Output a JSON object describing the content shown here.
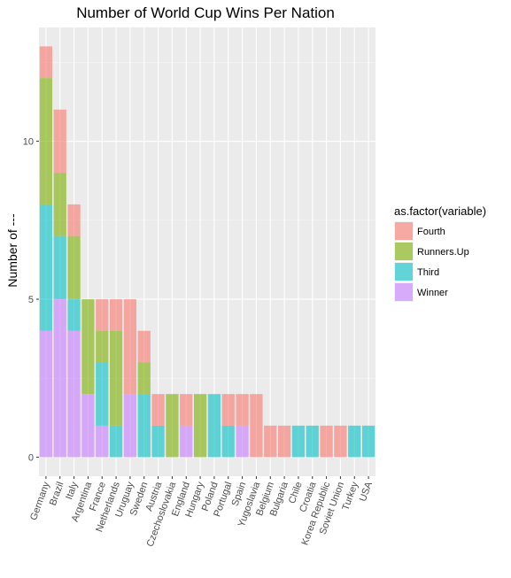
{
  "chart_data": {
    "type": "bar",
    "stacked": true,
    "title": "Number of World Cup Wins Per Nation",
    "xlabel": "",
    "ylabel": "Number of ---",
    "ylim": [
      -0.6,
      13.6
    ],
    "yticks": [
      0,
      5,
      10
    ],
    "grid": true,
    "legend_position": "right",
    "legend_title": "as.factor(variable)",
    "categories": [
      "Germany",
      "Brazil",
      "Italy",
      "Argentina",
      "France",
      "Netherlands",
      "Uruguay",
      "Sweden",
      "Austria",
      "Czechoslovakia",
      "England",
      "Hungary",
      "Poland",
      "Portugal",
      "Spain",
      "Yugoslavia",
      "Belgium",
      "Bulgaria",
      "Chile",
      "Croatia",
      "Korea Republic",
      "Soviet Union",
      "Turkey",
      "USA"
    ],
    "series": [
      {
        "name": "Winner",
        "color": "#C77CFF",
        "values": [
          4,
          5,
          4,
          2,
          1,
          0,
          2,
          0,
          0,
          0,
          1,
          0,
          0,
          0,
          1,
          0,
          0,
          0,
          0,
          0,
          0,
          0,
          0,
          0
        ]
      },
      {
        "name": "Third",
        "color": "#00BFC4",
        "values": [
          4,
          2,
          1,
          0,
          2,
          1,
          0,
          2,
          1,
          0,
          0,
          0,
          2,
          1,
          0,
          0,
          0,
          0,
          1,
          1,
          0,
          0,
          1,
          1
        ]
      },
      {
        "name": "Runners.Up",
        "color": "#7CAE00",
        "values": [
          4,
          2,
          2,
          3,
          1,
          3,
          0,
          1,
          0,
          2,
          0,
          2,
          0,
          0,
          0,
          0,
          0,
          0,
          0,
          0,
          0,
          0,
          0,
          0
        ]
      },
      {
        "name": "Fourth",
        "color": "#F8766D",
        "values": [
          1,
          2,
          1,
          0,
          1,
          1,
          3,
          1,
          1,
          0,
          1,
          0,
          0,
          1,
          1,
          2,
          1,
          1,
          0,
          0,
          1,
          1,
          0,
          0
        ]
      }
    ],
    "legend_order": [
      "Fourth",
      "Runners.Up",
      "Third",
      "Winner"
    ],
    "bar_opacity": 0.6
  },
  "colors": {
    "panel_background": "#EBEBEB",
    "grid_major": "#FFFFFF",
    "grid_minor": "#F5F5F5"
  }
}
